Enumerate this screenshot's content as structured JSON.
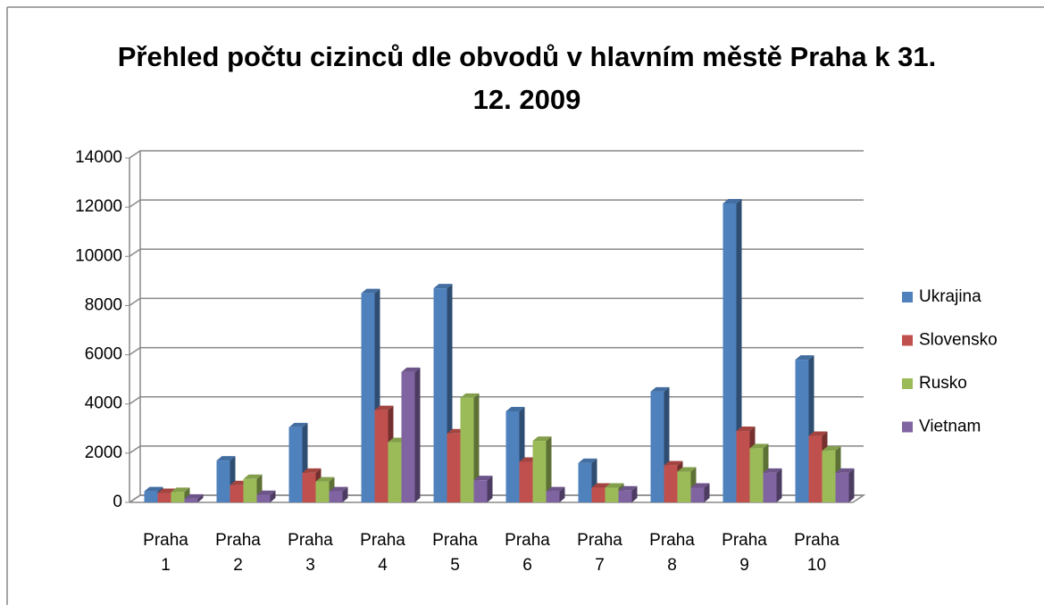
{
  "chart_data": {
    "type": "bar3d",
    "title": "Přehled počtu cizinců dle obvodů v hlavním městě Praha k 31. 12. 2009",
    "categories": [
      "Praha 1",
      "Praha 2",
      "Praha 3",
      "Praha 4",
      "Praha 5",
      "Praha 6",
      "Praha 7",
      "Praha 8",
      "Praha 9",
      "Praha 10"
    ],
    "series": [
      {
        "name": "Ukrajina",
        "color": "#4F81BD",
        "values": [
          450,
          1700,
          3050,
          8500,
          8700,
          3700,
          1600,
          4500,
          12150,
          5800
        ]
      },
      {
        "name": "Slovensko",
        "color": "#C0504D",
        "values": [
          380,
          700,
          1200,
          3750,
          2800,
          1650,
          600,
          1500,
          2900,
          2700
        ]
      },
      {
        "name": "Rusko",
        "color": "#9BBB59",
        "values": [
          420,
          950,
          850,
          2450,
          4250,
          2500,
          600,
          1250,
          2200,
          2100
        ]
      },
      {
        "name": "Vietnam",
        "color": "#8064A2",
        "values": [
          150,
          300,
          450,
          5300,
          900,
          450,
          480,
          600,
          1200,
          1200
        ]
      }
    ],
    "ylim": [
      0,
      14000
    ],
    "yticks": [
      0,
      2000,
      4000,
      6000,
      8000,
      10000,
      12000,
      14000
    ],
    "grid": true,
    "legend": "right"
  }
}
